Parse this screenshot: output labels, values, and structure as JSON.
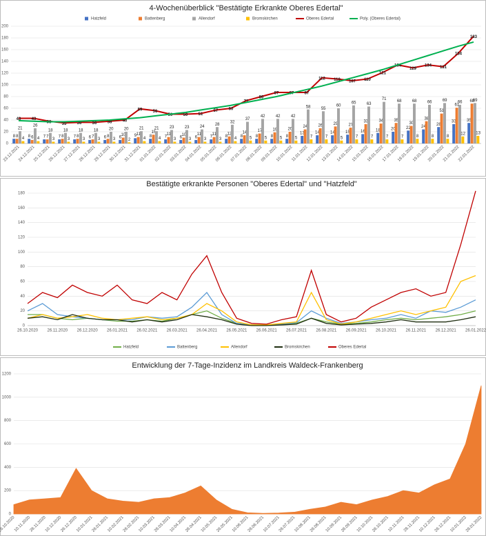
{
  "chart_data": [
    {
      "type": "combo",
      "title": "4-Wochenüberblick \"Bestätigte Erkrankte Oberes Edertal\"",
      "legend": "top",
      "grid": true,
      "data_labels": true,
      "categories": [
        "23.12.2021",
        "24.12.2021",
        "25.12.2021",
        "26.12.2021",
        "27.12.2021",
        "28.12.2021",
        "29.12.2021",
        "30.12.2021",
        "31.12.2021",
        "01.01.2022",
        "02.01.2022",
        "03.01.2022",
        "04.01.2022",
        "05.01.2022",
        "06.01.2022",
        "07.01.2022",
        "08.01.2022",
        "09.01.2022",
        "10.01.2022",
        "11.01.2022",
        "12.01.2022",
        "13.01.2022",
        "14.01.2022",
        "15.01.2022",
        "16.01.2022",
        "17.01.2022",
        "18.01.2022",
        "19.01.2022",
        "20.01.2022",
        "21.01.2022",
        "22.01.2022"
      ],
      "ylim": [
        0,
        200
      ],
      "yticks": [
        0,
        20,
        40,
        60,
        80,
        100,
        120,
        140,
        160,
        180,
        200
      ],
      "series": [
        {
          "name": "Hatzfeld",
          "type": "bar",
          "color": "#4472c4",
          "values": [
            8,
            8,
            7,
            7,
            7,
            6,
            6,
            6,
            9,
            8,
            7,
            6,
            6,
            7,
            8,
            8,
            8,
            8,
            8,
            13,
            14,
            14,
            15,
            16,
            18,
            20,
            22,
            24,
            28,
            33,
            35
          ]
        },
        {
          "name": "Battenberg",
          "type": "bar",
          "color": "#ed7d31",
          "values": [
            8,
            6,
            7,
            8,
            8,
            7,
            8,
            10,
            11,
            15,
            11,
            10,
            11,
            11,
            12,
            14,
            17,
            19,
            20,
            24,
            26,
            29,
            27,
            33,
            34,
            35,
            30,
            38,
            51,
            61,
            68
          ]
        },
        {
          "name": "Allendorf",
          "type": "bar",
          "color": "#a5a5a5",
          "values": [
            21,
            26,
            18,
            18,
            18,
            18,
            20,
            20,
            21,
            21,
            23,
            23,
            24,
            28,
            32,
            37,
            42,
            42,
            42,
            58,
            55,
            60,
            65,
            63,
            71,
            68,
            68,
            66,
            69,
            66,
            69
          ]
        },
        {
          "name": "Bromskirchen",
          "type": "bar",
          "color": "#ffc000",
          "values": [
            4,
            4,
            3,
            3,
            3,
            3,
            3,
            2,
            4,
            4,
            3,
            3,
            3,
            3,
            4,
            5,
            5,
            5,
            5,
            7,
            7,
            5,
            7,
            7,
            7,
            7,
            8,
            8,
            8,
            12,
            13
          ]
        },
        {
          "name": "Oberes Edertal",
          "type": "line",
          "color": "#c00000",
          "values": [
            43,
            43,
            38,
            35,
            36,
            36,
            38,
            40,
            59,
            56,
            50,
            50,
            51,
            57,
            60,
            73,
            80,
            87,
            87,
            87,
            112,
            110,
            107,
            110,
            121,
            134,
            129,
            134,
            131,
            154,
            183
          ]
        },
        {
          "name": "Poly. (Oberes Edertal)",
          "type": "line",
          "color": "#00b050",
          "values": [
            39,
            38,
            37,
            37,
            38,
            39,
            40,
            42,
            44,
            47,
            50,
            53,
            57,
            61,
            65,
            70,
            75,
            80,
            86,
            92,
            98,
            105,
            112,
            119,
            126,
            134,
            142,
            150,
            158,
            166,
            173
          ]
        }
      ]
    },
    {
      "type": "line",
      "title": "Bestätigte erkrankte Personen \"Oberes Edertal\" und \"Hatzfeld\"",
      "legend": "bottom",
      "grid": true,
      "categories": [
        "26.10.2020",
        null,
        "26.11.2020",
        null,
        "26.12.2020",
        null,
        "26.01.2021",
        null,
        "26.02.2021",
        null,
        "26.03.2021",
        null,
        "26.04.2021",
        null,
        "26.05.2021",
        null,
        "26.06.2021",
        null,
        "26.07.2021",
        null,
        "26.08.2021",
        null,
        "26.09.2021",
        null,
        "26.10.2021",
        null,
        "26.11.2021",
        null,
        "26.12.2021",
        null,
        "26.01.2022"
      ],
      "ylim": [
        0,
        180
      ],
      "yticks": [
        0,
        20,
        40,
        60,
        80,
        100,
        120,
        140,
        160,
        180
      ],
      "series": [
        {
          "name": "Hatzfeld",
          "color": "#70ad47",
          "values": [
            15,
            15,
            10,
            8,
            10,
            8,
            6,
            6,
            8,
            6,
            10,
            15,
            20,
            10,
            3,
            1,
            1,
            2,
            3,
            10,
            5,
            2,
            3,
            5,
            8,
            10,
            8,
            10,
            12,
            15,
            20
          ]
        },
        {
          "name": "Battenberg",
          "color": "#5b9bd5",
          "values": [
            20,
            30,
            15,
            12,
            10,
            8,
            8,
            8,
            12,
            10,
            12,
            25,
            45,
            15,
            3,
            1,
            1,
            2,
            4,
            20,
            10,
            3,
            5,
            8,
            10,
            15,
            10,
            20,
            18,
            25,
            35
          ]
        },
        {
          "name": "Allendorf",
          "color": "#ffc000",
          "values": [
            10,
            15,
            10,
            12,
            15,
            10,
            8,
            10,
            12,
            8,
            10,
            15,
            30,
            20,
            5,
            1,
            1,
            3,
            5,
            45,
            8,
            2,
            5,
            10,
            15,
            20,
            15,
            20,
            25,
            60,
            68
          ]
        },
        {
          "name": "Bromskirchen",
          "color": "#1e2d10",
          "values": [
            10,
            12,
            8,
            15,
            10,
            8,
            8,
            5,
            8,
            5,
            8,
            15,
            12,
            8,
            2,
            0,
            0,
            1,
            2,
            10,
            3,
            1,
            2,
            3,
            5,
            8,
            5,
            5,
            5,
            8,
            12
          ]
        },
        {
          "name": "Oberes Edertal",
          "color": "#c00000",
          "values": [
            30,
            45,
            38,
            55,
            45,
            40,
            55,
            35,
            30,
            45,
            35,
            70,
            95,
            45,
            10,
            3,
            2,
            8,
            12,
            75,
            15,
            5,
            10,
            25,
            35,
            45,
            50,
            40,
            45,
            110,
            183
          ]
        }
      ]
    },
    {
      "type": "area",
      "title": "Entwicklung der 7-Tage-Inzidenz im Landkreis Waldeck-Frankenberg",
      "grid": true,
      "color": "#ed7d31",
      "categories": [
        "26.10.2020",
        "10.11.2020",
        "26.11.2020",
        "10.12.2020",
        "26.12.2020",
        "10.01.2021",
        "26.01.2021",
        "10.02.2021",
        "26.02.2021",
        "10.03.2021",
        "26.03.2021",
        "10.04.2021",
        "26.04.2021",
        "10.05.2021",
        "26.05.2021",
        "10.06.2021",
        "26.06.2021",
        "10.07.2021",
        "26.07.2021",
        "10.08.2021",
        "26.08.2021",
        "10.09.2021",
        "26.09.2021",
        "10.10.2021",
        "26.10.2021",
        "10.11.2021",
        "26.11.2021",
        "10.12.2021",
        "26.12.2021",
        "10.01.2022",
        "26.01.2022"
      ],
      "ylim": [
        0,
        1200
      ],
      "yticks": [
        0,
        200,
        400,
        600,
        800,
        1000,
        1200
      ],
      "values": [
        80,
        120,
        130,
        140,
        390,
        200,
        130,
        110,
        100,
        130,
        140,
        180,
        240,
        120,
        40,
        10,
        5,
        8,
        15,
        40,
        60,
        100,
        80,
        120,
        150,
        200,
        180,
        250,
        300,
        600,
        1100
      ]
    }
  ]
}
